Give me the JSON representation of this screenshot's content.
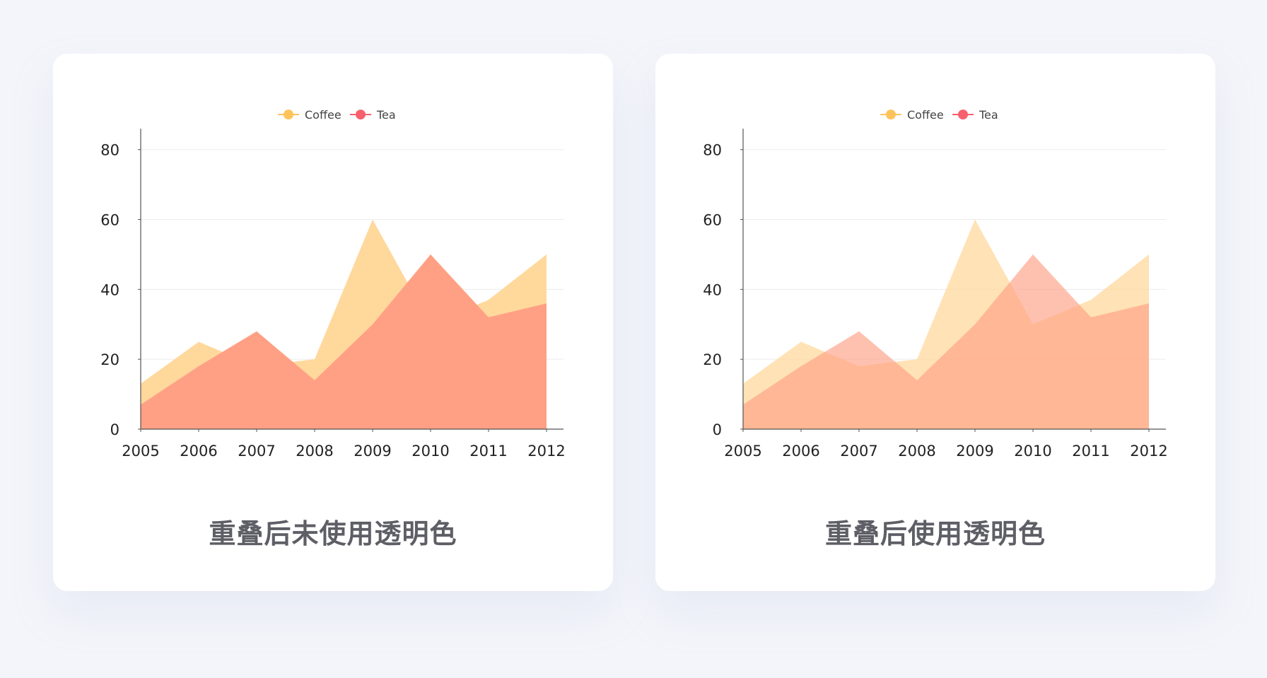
{
  "colors": {
    "coffee": "#ffd89c",
    "coffee_legend": "#ffc35b",
    "tea": "#ffa084",
    "tea_legend": "#f8606e",
    "grid": "#ececec",
    "axis": "#555555"
  },
  "chart_data": [
    {
      "type": "area",
      "title": "",
      "caption": "重叠后未使用透明色",
      "transparent": false,
      "x": [
        "2005",
        "2006",
        "2007",
        "2008",
        "2009",
        "2010",
        "2011",
        "2012"
      ],
      "series": [
        {
          "name": "Coffee",
          "values": [
            13,
            25,
            18,
            20,
            60,
            30,
            37,
            50
          ]
        },
        {
          "name": "Tea",
          "values": [
            7,
            18,
            28,
            14,
            30,
            50,
            32,
            36
          ]
        }
      ],
      "yticks": [
        "0",
        "20",
        "40",
        "60",
        "80"
      ],
      "ylim": [
        0,
        86
      ],
      "legend": "top-center",
      "grid": true
    },
    {
      "type": "area",
      "title": "",
      "caption": "重叠后使用透明色",
      "transparent": true,
      "x": [
        "2005",
        "2006",
        "2007",
        "2008",
        "2009",
        "2010",
        "2011",
        "2012"
      ],
      "series": [
        {
          "name": "Coffee",
          "values": [
            13,
            25,
            18,
            20,
            60,
            30,
            37,
            50
          ]
        },
        {
          "name": "Tea",
          "values": [
            7,
            18,
            28,
            14,
            30,
            50,
            32,
            36
          ]
        }
      ],
      "yticks": [
        "0",
        "20",
        "40",
        "60",
        "80"
      ],
      "ylim": [
        0,
        86
      ],
      "legend": "top-center",
      "grid": true
    }
  ]
}
